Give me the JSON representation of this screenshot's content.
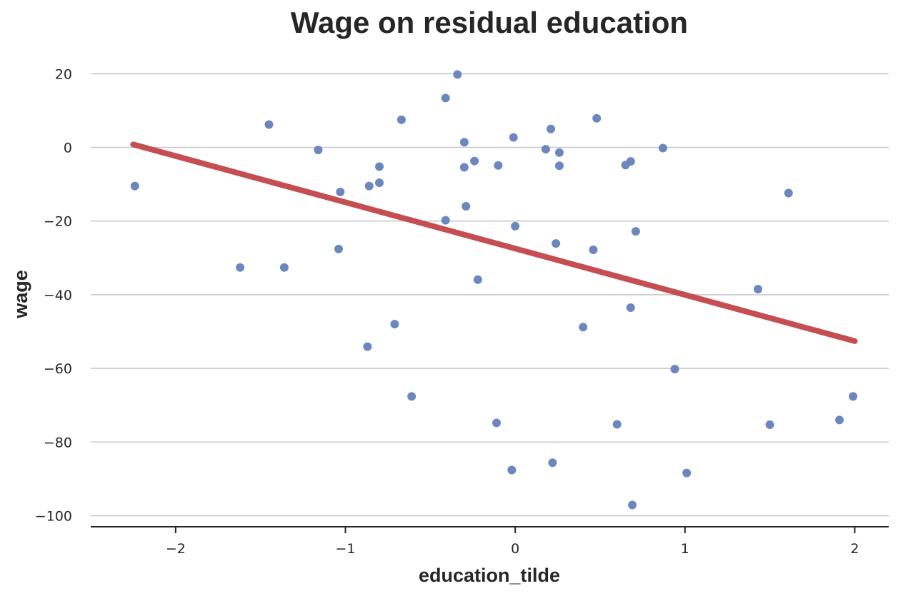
{
  "chart_data": {
    "type": "scatter",
    "title": "Wage on residual education",
    "xlabel": "education_tilde",
    "ylabel": "wage",
    "xlim": [
      -2.5,
      2.2
    ],
    "ylim": [
      -103,
      28
    ],
    "x_ticks": [
      -2,
      -1,
      0,
      1,
      2
    ],
    "y_ticks": [
      20,
      0,
      -20,
      -40,
      -60,
      -80,
      -100
    ],
    "x_tick_labels": [
      "−2",
      "−1",
      "0",
      "1",
      "2"
    ],
    "y_tick_labels": [
      "20",
      "0",
      "−20",
      "−40",
      "−60",
      "−80",
      "−100"
    ],
    "grid": "horizontal",
    "colors": {
      "points": "#6b87be",
      "line": "#c44e52",
      "grid": "#c8c8c8",
      "axis": "#262626"
    },
    "series": [
      {
        "type": "scatter",
        "points": [
          [
            -2.24,
            -10.5
          ],
          [
            -1.62,
            -32.6
          ],
          [
            -1.45,
            6.2
          ],
          [
            -1.36,
            -32.6
          ],
          [
            -1.16,
            -0.7
          ],
          [
            -1.04,
            -27.6
          ],
          [
            -1.03,
            -12.1
          ],
          [
            -0.87,
            -54.1
          ],
          [
            -0.86,
            -10.5
          ],
          [
            -0.8,
            -5.2
          ],
          [
            -0.8,
            -9.6
          ],
          [
            -0.71,
            -48.0
          ],
          [
            -0.67,
            7.5
          ],
          [
            -0.61,
            -67.6
          ],
          [
            -0.41,
            13.4
          ],
          [
            -0.41,
            -19.8
          ],
          [
            -0.34,
            19.8
          ],
          [
            -0.3,
            1.4
          ],
          [
            -0.3,
            -5.4
          ],
          [
            -0.29,
            -16.0
          ],
          [
            -0.24,
            -3.7
          ],
          [
            -0.22,
            -35.9
          ],
          [
            -0.11,
            -74.8
          ],
          [
            -0.1,
            -4.9
          ],
          [
            -0.02,
            -87.6
          ],
          [
            -0.01,
            2.7
          ],
          [
            0.0,
            -21.4
          ],
          [
            0.18,
            -0.5
          ],
          [
            0.21,
            5.0
          ],
          [
            0.22,
            -85.6
          ],
          [
            0.24,
            -26.1
          ],
          [
            0.26,
            -1.4
          ],
          [
            0.26,
            -5.0
          ],
          [
            0.4,
            -48.8
          ],
          [
            0.46,
            -27.8
          ],
          [
            0.48,
            7.9
          ],
          [
            0.6,
            -75.2
          ],
          [
            0.65,
            -4.8
          ],
          [
            0.68,
            -3.8
          ],
          [
            0.68,
            -43.5
          ],
          [
            0.69,
            -97.1
          ],
          [
            0.71,
            -22.8
          ],
          [
            0.87,
            -0.2
          ],
          [
            0.94,
            -60.2
          ],
          [
            1.01,
            -88.4
          ],
          [
            1.43,
            -38.5
          ],
          [
            1.5,
            -75.3
          ],
          [
            1.61,
            -12.4
          ],
          [
            1.91,
            -74.0
          ],
          [
            1.99,
            -67.6
          ]
        ]
      },
      {
        "type": "line",
        "points": [
          [
            -2.25,
            0.8
          ],
          [
            2.0,
            -52.6
          ]
        ]
      }
    ]
  }
}
